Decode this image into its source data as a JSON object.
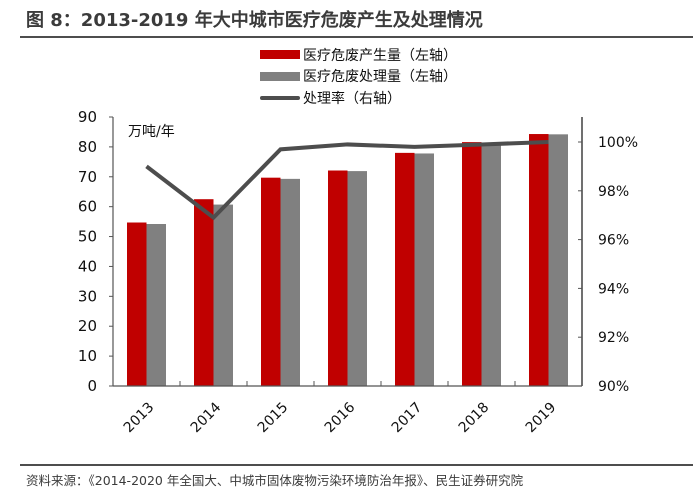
{
  "title": "图 8：2013-2019 年大中城市医疗危废产生及处理情况",
  "source": "资料来源：《2014-2020 年全国大、中城市固体废物污染环境防治年报》、民生证券研究院",
  "legend": [
    {
      "label": "医疗危废产生量（左轴）",
      "color": "#c00000",
      "kind": "bar"
    },
    {
      "label": "医疗危废处理量（左轴）",
      "color": "#808080",
      "kind": "bar"
    },
    {
      "label": "处理率（右轴）",
      "color": "#4d4d4d",
      "kind": "line"
    }
  ],
  "chart_data": {
    "type": "bar",
    "title": "2013-2019 年大中城市医疗危废产生及处理情况",
    "categories": [
      "2013",
      "2014",
      "2015",
      "2016",
      "2017",
      "2018",
      "2019"
    ],
    "series": [
      {
        "name": "医疗危废产生量（左轴）",
        "axis": "left",
        "type": "bar",
        "color": "#c00000",
        "values": [
          54.7,
          62.5,
          69.7,
          72.1,
          78.0,
          81.6,
          84.3
        ]
      },
      {
        "name": "医疗危废处理量（左轴）",
        "axis": "left",
        "type": "bar",
        "color": "#808080",
        "values": [
          54.2,
          60.7,
          69.3,
          71.9,
          77.8,
          81.3,
          84.2
        ]
      },
      {
        "name": "处理率（右轴）",
        "axis": "right",
        "type": "line",
        "color": "#4d4d4d",
        "values": [
          99.0,
          96.9,
          99.7,
          99.9,
          99.8,
          99.9,
          100.0
        ]
      }
    ],
    "ylabel_left": "万吨/年",
    "ylim_left": [
      0,
      90
    ],
    "yticks_left": [
      "0",
      "10",
      "20",
      "30",
      "40",
      "50",
      "60",
      "70",
      "80",
      "90"
    ],
    "ylim_right": [
      90,
      100
    ],
    "yticks_right": [
      "90%",
      "92%",
      "94%",
      "96%",
      "98%",
      "100%"
    ],
    "grid": false,
    "legend_position": "top"
  }
}
